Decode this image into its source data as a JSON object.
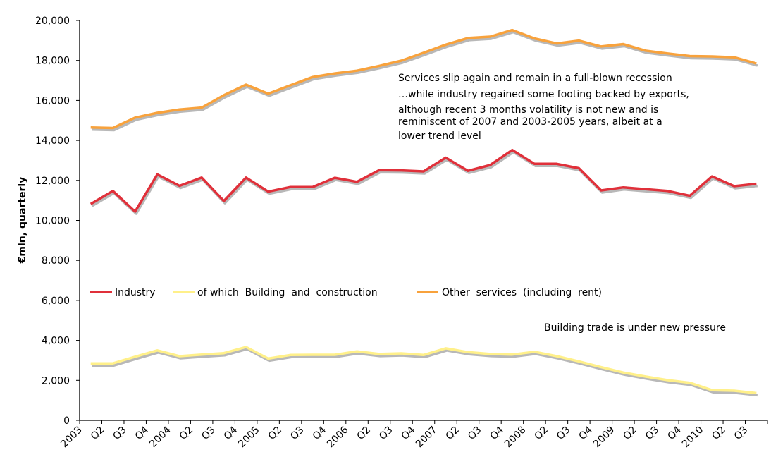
{
  "chart_data": {
    "type": "line",
    "title": "",
    "xlabel": "",
    "ylabel": "€mln, quarterly",
    "ylim": [
      0,
      20000
    ],
    "yticks": [
      0,
      2000,
      4000,
      6000,
      8000,
      10000,
      12000,
      14000,
      16000,
      18000,
      20000
    ],
    "ytick_labels": [
      "0",
      "2,000",
      "4,000",
      "6,000",
      "8,000",
      "10,000",
      "12,000",
      "14,000",
      "16,000",
      "18,000",
      "20,000"
    ],
    "grid": false,
    "legend_position": "middle-left (inside plot, single row)",
    "categories": [
      "2003",
      "Q2",
      "Q3",
      "Q4",
      "2004",
      "Q2",
      "Q3",
      "Q4",
      "2005",
      "Q2",
      "Q3",
      "Q4",
      "2006",
      "Q2",
      "Q3",
      "Q4",
      "2007",
      "Q2",
      "Q3",
      "Q4",
      "2008",
      "Q2",
      "Q3",
      "Q4",
      "2009",
      "Q2",
      "Q3",
      "Q4",
      "2010",
      "Q2",
      "Q3"
    ],
    "series": [
      {
        "name": "Industry",
        "color": "#e0303a",
        "values": [
          10820,
          11470,
          10440,
          12300,
          11730,
          12140,
          10970,
          12140,
          11440,
          11670,
          11670,
          12130,
          11930,
          12510,
          12500,
          12450,
          13140,
          12480,
          12770,
          13520,
          12830,
          12830,
          12610,
          11500,
          11650,
          11560,
          11470,
          11230,
          12200,
          11710,
          11830
        ]
      },
      {
        "name": "of which  Building  and  construction",
        "color": "#fff08a",
        "values": [
          2850,
          2850,
          3180,
          3500,
          3210,
          3290,
          3360,
          3670,
          3090,
          3270,
          3280,
          3280,
          3450,
          3320,
          3350,
          3270,
          3600,
          3410,
          3320,
          3290,
          3430,
          3210,
          2950,
          2660,
          2390,
          2190,
          2010,
          1880,
          1510,
          1480,
          1360
        ]
      },
      {
        "name": "Other  services  (including  rent)",
        "color": "#f8a23c",
        "values": [
          14650,
          14620,
          15140,
          15380,
          15550,
          15640,
          16260,
          16790,
          16340,
          16760,
          17170,
          17350,
          17490,
          17730,
          17990,
          18380,
          18790,
          19120,
          19190,
          19520,
          19100,
          18850,
          18990,
          18700,
          18820,
          18490,
          18350,
          18220,
          18200,
          18160,
          17850
        ]
      }
    ],
    "annotations": [
      {
        "id": "services-note",
        "lines": [
          "Services slip again and remain in a full-blown recession",
          "…while industry regained some footing backed by exports,",
          "although recent 3 months volatility is not new and is",
          "reminiscent of 2007 and 2003-2005 years, albeit at a",
          "lower trend level"
        ]
      },
      {
        "id": "building-note",
        "lines": [
          "Building trade is under new pressure"
        ]
      }
    ],
    "shadow_color": "#b8b8b8"
  }
}
